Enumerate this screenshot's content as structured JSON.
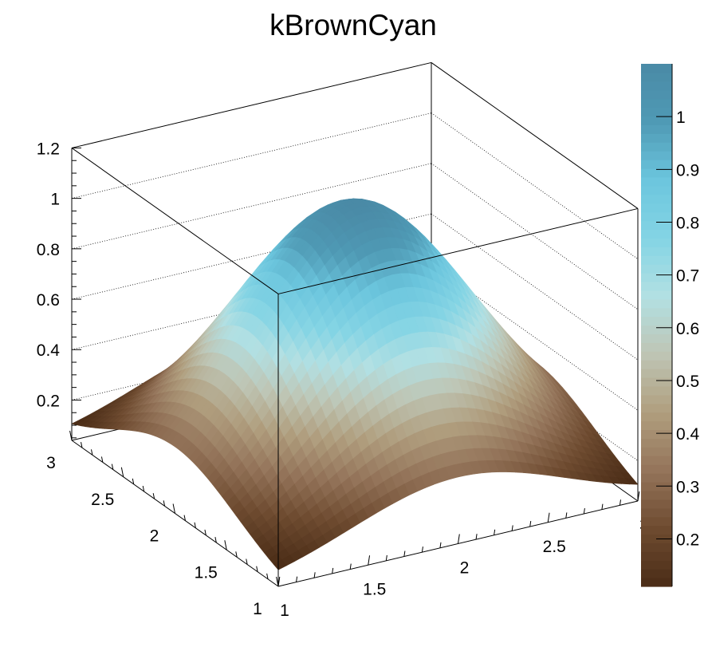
{
  "chart_data": {
    "type": "surface",
    "title": "kBrownCyan",
    "function_description_samples": {
      "x": [
        1,
        1.5,
        2,
        2.5,
        3
      ],
      "y": [
        1,
        1.5,
        2,
        2.5,
        3
      ],
      "z_center": 1.1,
      "z_edge_mid": 0.27,
      "z_corner": 0.1
    },
    "xlim": [
      1,
      3
    ],
    "ylim": [
      1,
      3
    ],
    "zlim": [
      0.04,
      1.2
    ],
    "x_ticks": [
      "1",
      "1.5",
      "2",
      "2.5",
      "3"
    ],
    "y_ticks": [
      "1",
      "1.5",
      "2",
      "2.5",
      "3"
    ],
    "z_ticks": [
      "0.2",
      "0.4",
      "0.6",
      "0.8",
      "1",
      "1.2"
    ],
    "colorbar": {
      "range": [
        0.11,
        1.1
      ],
      "ticks": [
        "0.2",
        "0.3",
        "0.4",
        "0.5",
        "0.6",
        "0.7",
        "0.8",
        "0.9",
        "1"
      ]
    },
    "palette_name": "kBrownCyan",
    "palette": [
      "#4a2c16",
      "#6e4b30",
      "#94745a",
      "#b09e7e",
      "#bec5b4",
      "#b2e0e3",
      "#84d4e4",
      "#6cc6de",
      "#4f9ab5",
      "#4a8aa6"
    ],
    "grid": true
  }
}
